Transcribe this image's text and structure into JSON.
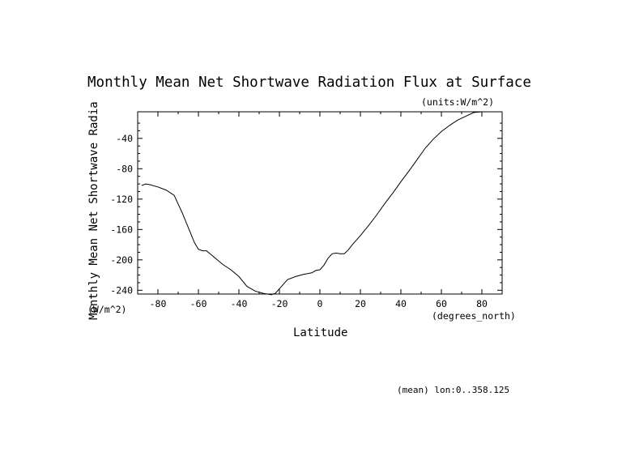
{
  "chart_data": {
    "type": "line",
    "title": "Monthly Mean Net Shortwave Radiation Flux at Surface",
    "units_note": "(units:W/m^2)",
    "xlabel": "Latitude",
    "x_units": "(degrees_north)",
    "ylabel": "Monthly Mean Net Shortwave Radia",
    "y_units": "(W/m^2)",
    "footnote": "(mean) lon:0..358.125",
    "xlim": [
      -90,
      90
    ],
    "ylim": [
      -245,
      -5
    ],
    "x_ticks": [
      -80,
      -60,
      -40,
      -20,
      0,
      20,
      40,
      60,
      80
    ],
    "y_ticks": [
      -40,
      -80,
      -120,
      -160,
      -200,
      -240
    ],
    "grid": false,
    "series": [
      {
        "x": [
          -88,
          -86,
          -84,
          -80,
          -76,
          -72,
          -68,
          -64,
          -62,
          -60,
          -58,
          -56,
          -52,
          -48,
          -44,
          -40,
          -36,
          -32,
          -28,
          -26,
          -24,
          -22,
          -20,
          -18,
          -16,
          -12,
          -8,
          -4,
          -2,
          0,
          2,
          4,
          6,
          8,
          10,
          12,
          14,
          16,
          20,
          24,
          28,
          32,
          36,
          40,
          44,
          48,
          52,
          56,
          60,
          64,
          68,
          72,
          76,
          80
        ],
        "y": [
          -102,
          -100,
          -101,
          -104,
          -108,
          -115,
          -138,
          -164,
          -177,
          -186,
          -188,
          -188,
          -197,
          -206,
          -213,
          -222,
          -235,
          -241,
          -244,
          -245,
          -246,
          -244,
          -238,
          -232,
          -226,
          -222,
          -219,
          -217,
          -214,
          -213,
          -207,
          -198,
          -192,
          -191,
          -192,
          -192,
          -187,
          -180,
          -168,
          -155,
          -141,
          -126,
          -112,
          -97,
          -83,
          -68,
          -53,
          -41,
          -31,
          -23,
          -16,
          -11,
          -6,
          -5
        ]
      }
    ]
  }
}
